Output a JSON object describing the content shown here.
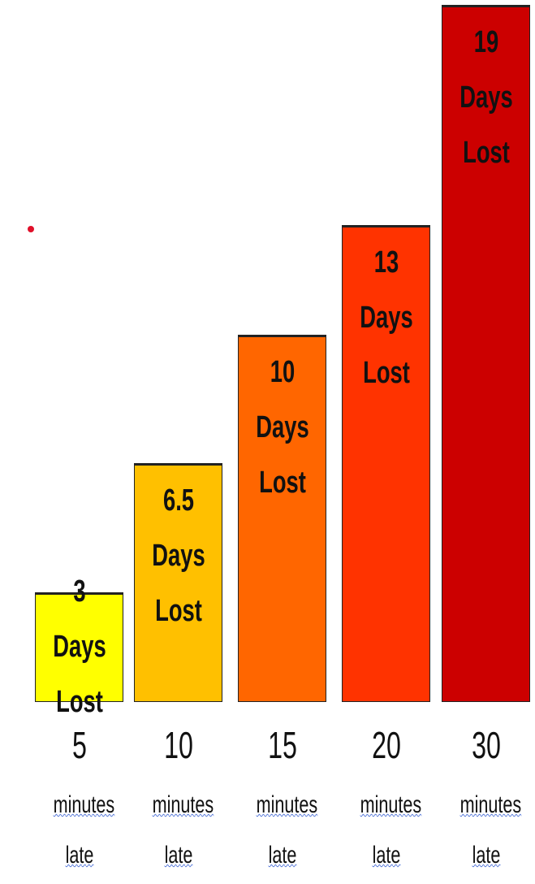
{
  "chart_data": {
    "type": "bar",
    "categories": [
      "5",
      "10",
      "15",
      "20",
      "30"
    ],
    "category_unit": "minutes late",
    "values": [
      3,
      6.5,
      10,
      13,
      19
    ],
    "value_labels": [
      "3 Days Lost",
      "6.5 Days Lost",
      "10 Days Lost",
      "13 Days Lost",
      "19 Days Lost"
    ],
    "colors": [
      "#ffff00",
      "#ffc000",
      "#ff6600",
      "#ff3300",
      "#cc0000"
    ],
    "ylim": [
      0,
      19
    ]
  }
}
